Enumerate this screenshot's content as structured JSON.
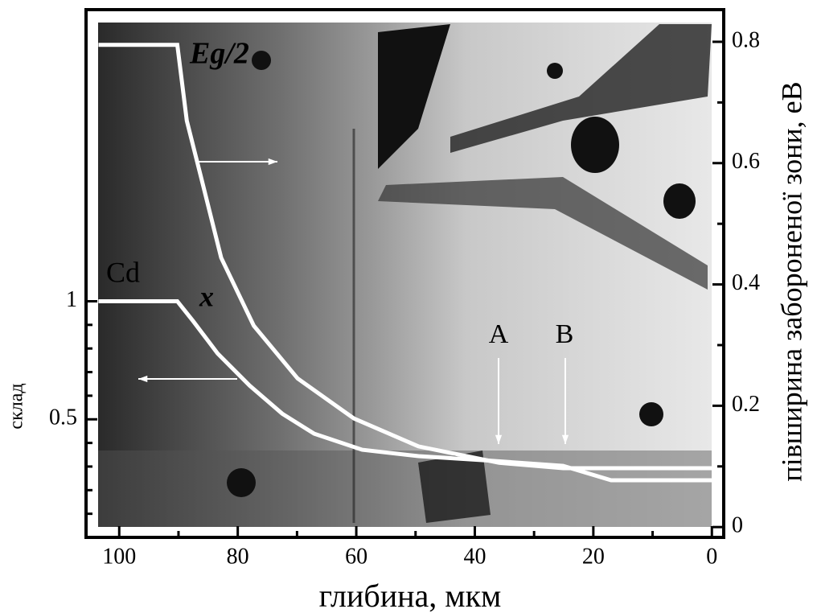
{
  "chart_data": {
    "type": "line",
    "xlabel": "глибина, мкм",
    "ylabel": "склад",
    "y2label": "півширина забороненої зони, еВ",
    "xlim": [
      105.6,
      -2
    ],
    "xticks": [
      100,
      80,
      60,
      40,
      20,
      0
    ],
    "xminor": [
      90,
      70,
      50,
      30,
      10
    ],
    "ylim": [
      0,
      2.235
    ],
    "yticks": [
      0.5,
      1.0
    ],
    "yminor": [
      0.1,
      0.2,
      0.3,
      0.4,
      0.6,
      0.7,
      0.8,
      0.9
    ],
    "y2lim": [
      -0.017,
      0.853
    ],
    "y2ticks": [
      0,
      0.2,
      0.4,
      0.6,
      0.8
    ],
    "y2minor": [
      0.1,
      0.3,
      0.5,
      0.7
    ],
    "series": [
      {
        "name": "x",
        "color": "#ffffff",
        "x": [
          103.5,
          90.2,
          87.5,
          83.4,
          78.0,
          72.5,
          67.1,
          59.0,
          49.5,
          38.7,
          25.1,
          17.0,
          0
        ],
        "values": [
          1.0,
          1.0,
          0.915,
          0.779,
          0.643,
          0.524,
          0.439,
          0.371,
          0.344,
          0.327,
          0.303,
          0.242,
          0.242
        ]
      },
      {
        "name": "Eg/2",
        "color": "#ffffff",
        "axis": "y2",
        "x": [
          103.5,
          90.2,
          88.6,
          86.2,
          82.8,
          77.3,
          69.9,
          60.4,
          49.5,
          35.9,
          25.1,
          0
        ],
        "values": [
          0.795,
          0.795,
          0.67,
          0.577,
          0.444,
          0.332,
          0.245,
          0.179,
          0.133,
          0.106,
          0.097,
          0.097
        ]
      }
    ],
    "annotations": [
      "Cd",
      "A",
      "B"
    ]
  }
}
